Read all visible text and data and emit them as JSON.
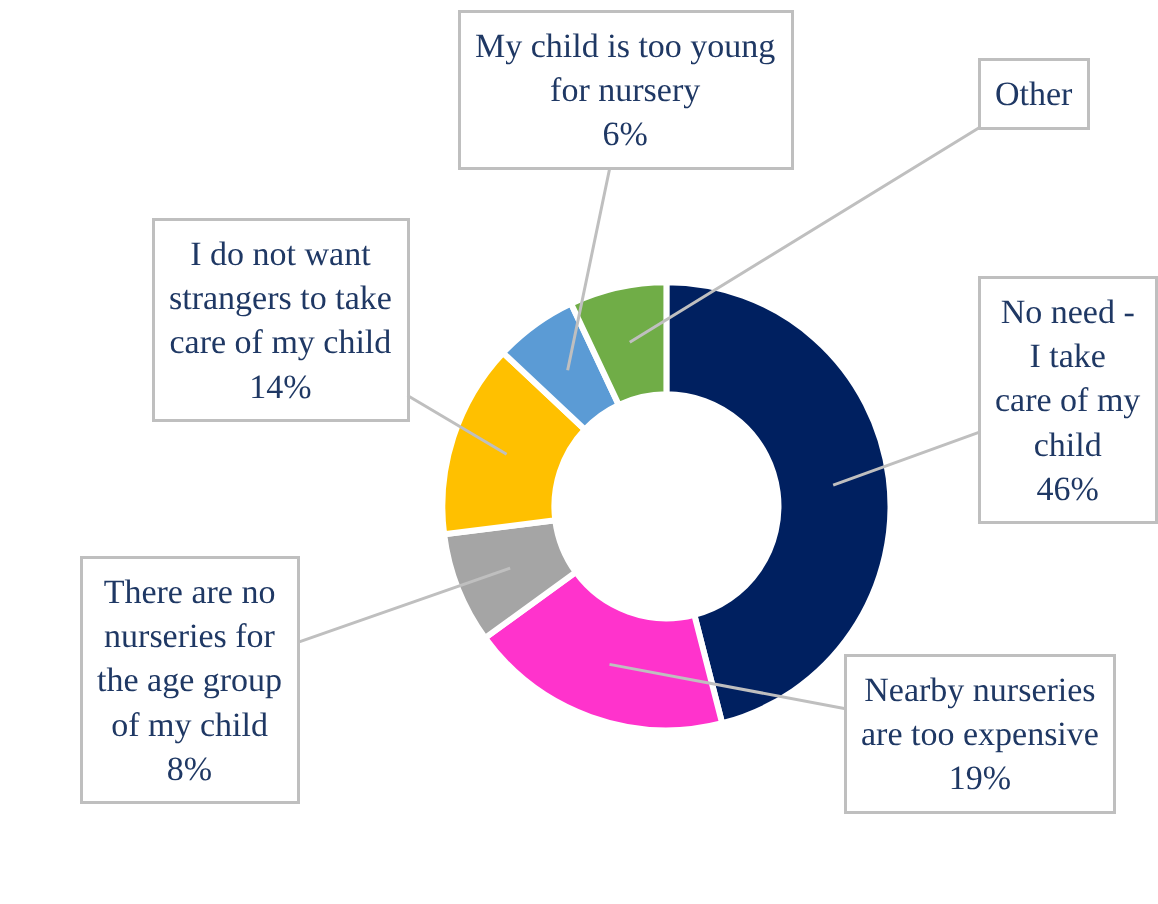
{
  "chart_data": {
    "type": "donut",
    "categories": [
      "No need - I take care of my child",
      "Nearby nurseries are too expensive",
      "There are no nurseries for the age group of my child",
      "I do not want strangers to take care of my child",
      "My child is too young for nursery",
      "Other"
    ],
    "values": [
      46,
      19,
      8,
      14,
      6,
      7
    ],
    "value_labels": [
      "46%",
      "19%",
      "8%",
      "14%",
      "6%",
      null
    ],
    "colors": [
      "#002060",
      "#ff33cc",
      "#a5a5a5",
      "#ffc000",
      "#5b9bd5",
      "#70ad47"
    ],
    "legend": false
  }
}
